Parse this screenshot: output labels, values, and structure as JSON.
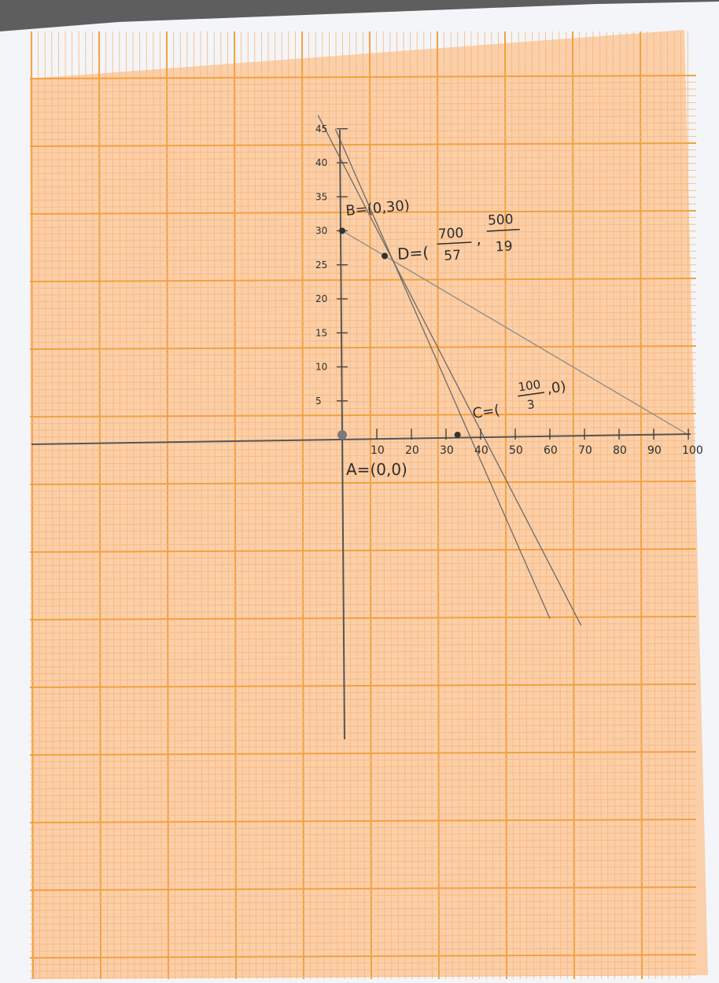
{
  "chart_data": {
    "type": "line",
    "title": "",
    "xlabel": "",
    "ylabel": "",
    "xlim": [
      0,
      100
    ],
    "ylim": [
      0,
      45
    ],
    "grid": true,
    "x_ticks": [
      {
        "value": 10,
        "label": "10"
      },
      {
        "value": 20,
        "label": "20"
      },
      {
        "value": 30,
        "label": "30"
      },
      {
        "value": 40,
        "label": "40"
      },
      {
        "value": 50,
        "label": "50"
      },
      {
        "value": 60,
        "label": "60"
      },
      {
        "value": 70,
        "label": "70"
      },
      {
        "value": 80,
        "label": "80"
      },
      {
        "value": 90,
        "label": "90"
      },
      {
        "value": 100,
        "label": "100"
      }
    ],
    "y_ticks": [
      {
        "value": 5,
        "label": "5"
      },
      {
        "value": 10,
        "label": "10"
      },
      {
        "value": 15,
        "label": "15"
      },
      {
        "value": 20,
        "label": "20"
      },
      {
        "value": 25,
        "label": "25"
      },
      {
        "value": 30,
        "label": "30"
      },
      {
        "value": 35,
        "label": "35"
      },
      {
        "value": 40,
        "label": "40"
      },
      {
        "value": 45,
        "label": "45"
      }
    ],
    "series": [
      {
        "points": [
          {
            "x": 0,
            "y": 30
          },
          {
            "x": 100,
            "y": 0
          }
        ]
      },
      {
        "points": [
          {
            "x": -2,
            "y": 45
          },
          {
            "x": 60,
            "y": -27
          }
        ]
      },
      {
        "points": [
          {
            "x": -7,
            "y": 47
          },
          {
            "x": 69,
            "y": -28
          }
        ]
      }
    ],
    "points": [
      {
        "name": "A",
        "x": 0,
        "y": 0,
        "label": "A=(0,0)"
      },
      {
        "name": "B",
        "x": 0,
        "y": 30,
        "label": "B=(0,30)"
      },
      {
        "name": "C",
        "x": 33.33,
        "y": 0,
        "label_prefix": "C=(",
        "frac_num": "100",
        "frac_den": "3",
        "label_suffix": ",0)"
      },
      {
        "name": "D",
        "x": 12.28,
        "y": 26.3,
        "label_prefix": "D=(",
        "frac1_num": "700",
        "frac1_den": "57",
        "frac2_num": "500",
        "frac2_den": "19"
      }
    ]
  }
}
